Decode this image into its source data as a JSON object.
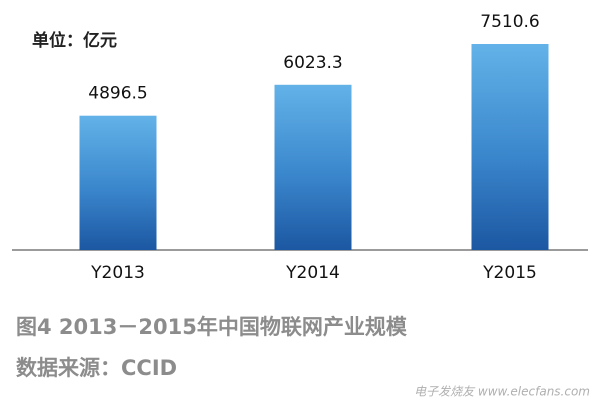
{
  "chart_data": {
    "type": "bar",
    "subtitle": "单位：亿元",
    "categories": [
      "Y2013",
      "Y2014",
      "Y2015"
    ],
    "values": [
      4896.5,
      6023.3,
      7510.6
    ],
    "caption": "图4  2013－2015年中国物联网产业规模",
    "source": "数据来源：CCID",
    "watermark": "电子发烧友 www.elecfans.com"
  }
}
